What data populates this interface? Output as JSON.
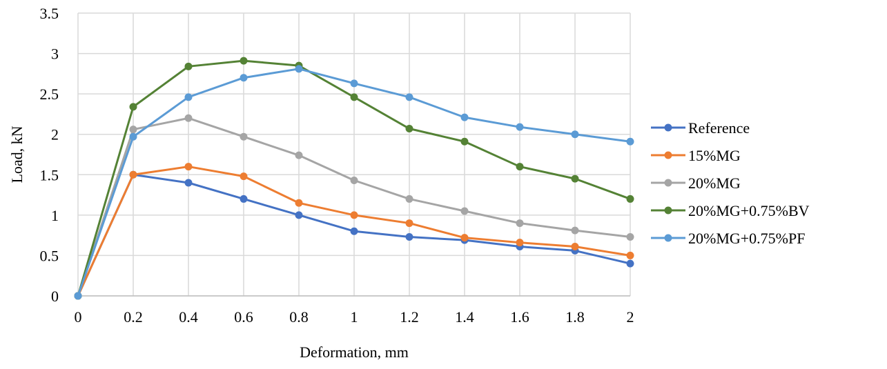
{
  "chart_data": {
    "type": "line",
    "title": "",
    "xlabel": "Deformation,  mm",
    "ylabel": "Load, kN",
    "xlim": [
      0,
      2
    ],
    "ylim": [
      0,
      3.5
    ],
    "x_ticks": [
      "0",
      "0.2",
      "0.4",
      "0.6",
      "0.8",
      "1",
      "1.2",
      "1.4",
      "1.6",
      "1.8",
      "2"
    ],
    "y_ticks": [
      "0",
      "0.5",
      "1",
      "1.5",
      "2",
      "2.5",
      "3",
      "3.5"
    ],
    "grid": true,
    "legend_position": "right",
    "x": [
      0,
      0.2,
      0.4,
      0.6,
      0.8,
      1.0,
      1.2,
      1.4,
      1.6,
      1.8,
      2.0
    ],
    "series": [
      {
        "name": "Reference",
        "color": "#4472c4",
        "values": [
          0,
          1.5,
          1.4,
          1.2,
          1.0,
          0.8,
          0.73,
          0.69,
          0.61,
          0.56,
          0.4
        ]
      },
      {
        "name": "15%MG",
        "color": "#ed7d31",
        "values": [
          0,
          1.5,
          1.6,
          1.48,
          1.15,
          1.0,
          0.9,
          0.72,
          0.66,
          0.61,
          0.5
        ]
      },
      {
        "name": "20%MG",
        "color": "#a5a5a5",
        "values": [
          0,
          2.06,
          2.2,
          1.97,
          1.74,
          1.43,
          1.2,
          1.05,
          0.9,
          0.81,
          0.73
        ]
      },
      {
        "name": "20%MG+0.75%BV",
        "color": "#548235",
        "values": [
          0,
          2.34,
          2.84,
          2.91,
          2.85,
          2.46,
          2.07,
          1.91,
          1.6,
          1.45,
          1.2
        ]
      },
      {
        "name": "20%MG+0.75%PF",
        "color": "#5b9bd5",
        "values": [
          0,
          1.97,
          2.46,
          2.7,
          2.81,
          2.63,
          2.46,
          2.21,
          2.09,
          2.0,
          1.91
        ]
      }
    ]
  }
}
